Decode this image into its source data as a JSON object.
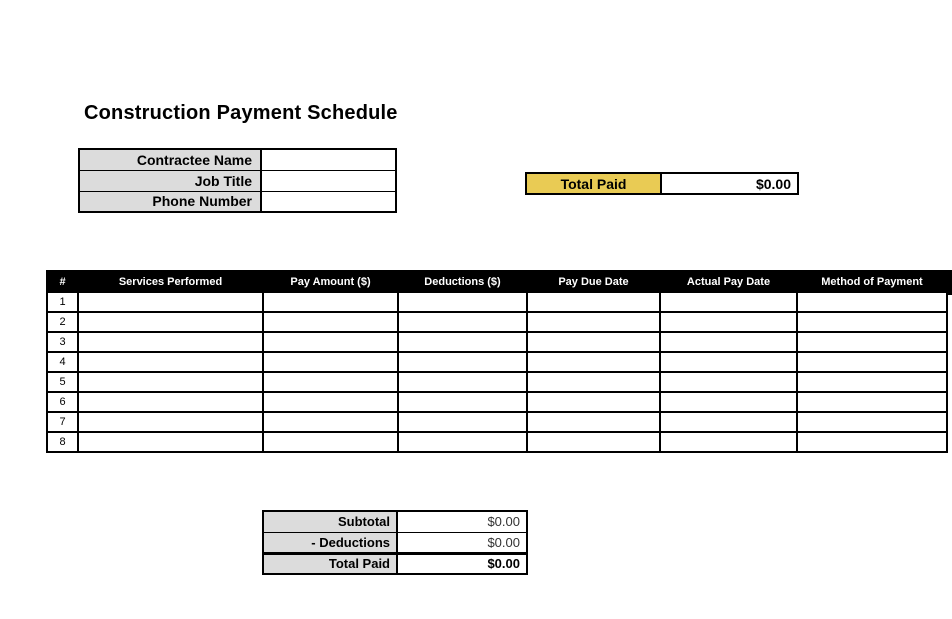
{
  "page": {
    "title": "Construction Payment Schedule"
  },
  "colors": {
    "accent_yellow": "#E9CB54",
    "label_gray": "#DCDCDC",
    "grid_black": "#000000",
    "muted_value_text": "#333333"
  },
  "info_table": {
    "rows": [
      {
        "label": "Contractee Name",
        "value": ""
      },
      {
        "label": "Job Title",
        "value": ""
      },
      {
        "label": "Phone Number",
        "value": ""
      }
    ]
  },
  "total_paid_box": {
    "label": "Total Paid",
    "value": "$0.00"
  },
  "main_table": {
    "headers": [
      "#",
      "Services Performed",
      "Pay Amount ($)",
      "Deductions ($)",
      "Pay Due Date",
      "Actual Pay Date",
      "Method of Payment"
    ],
    "rows": [
      {
        "num": "1",
        "cells": [
          "",
          "",
          "",
          "",
          "",
          ""
        ]
      },
      {
        "num": "2",
        "cells": [
          "",
          "",
          "",
          "",
          "",
          ""
        ]
      },
      {
        "num": "3",
        "cells": [
          "",
          "",
          "",
          "",
          "",
          ""
        ]
      },
      {
        "num": "4",
        "cells": [
          "",
          "",
          "",
          "",
          "",
          ""
        ]
      },
      {
        "num": "5",
        "cells": [
          "",
          "",
          "",
          "",
          "",
          ""
        ]
      },
      {
        "num": "6",
        "cells": [
          "",
          "",
          "",
          "",
          "",
          ""
        ]
      },
      {
        "num": "7",
        "cells": [
          "",
          "",
          "",
          "",
          "",
          ""
        ]
      },
      {
        "num": "8",
        "cells": [
          "",
          "",
          "",
          "",
          "",
          ""
        ]
      }
    ]
  },
  "summary_table": {
    "rows": [
      {
        "label": "Subtotal",
        "value": "$0.00",
        "emphasis": false
      },
      {
        "label": "- Deductions",
        "value": "$0.00",
        "emphasis": false
      },
      {
        "label": "Total Paid",
        "value": "$0.00",
        "emphasis": true
      }
    ]
  }
}
